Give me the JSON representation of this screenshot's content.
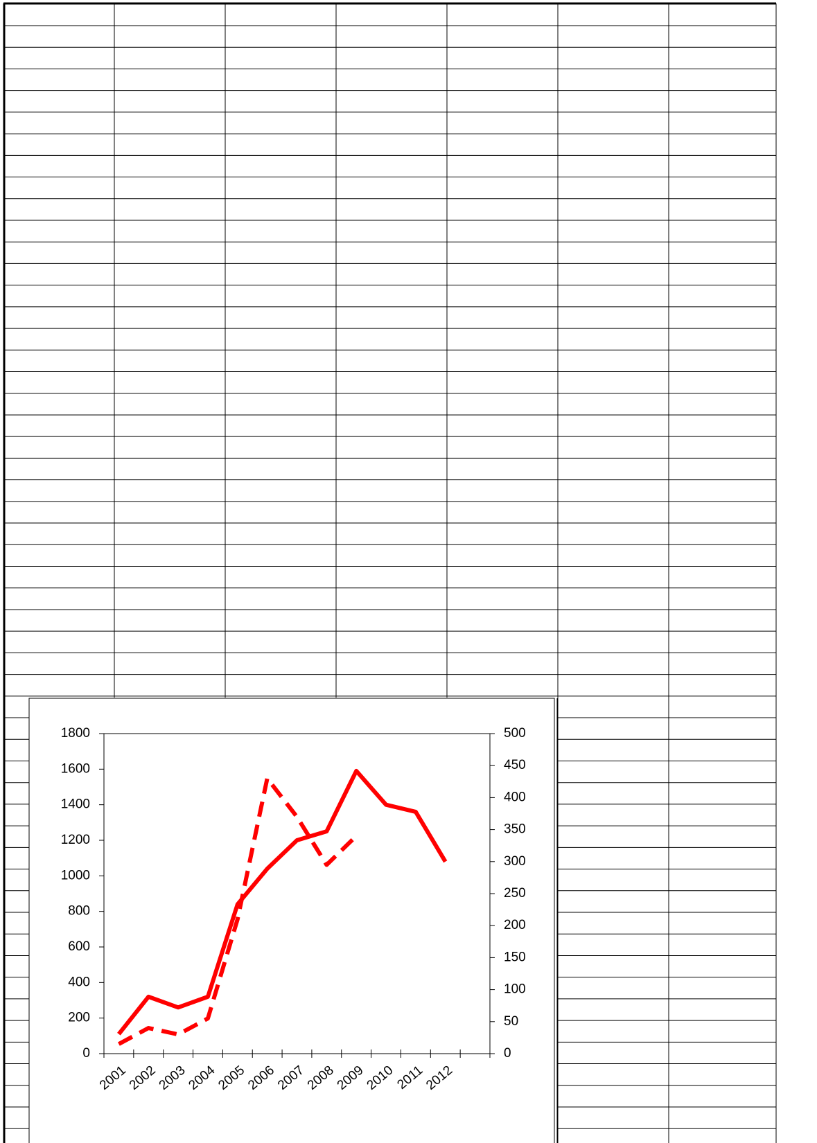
{
  "chart_data": {
    "type": "line",
    "categories": [
      "2001",
      "2002",
      "2003",
      "2004",
      "2005",
      "2006",
      "2007",
      "2008",
      "2009",
      "2010",
      "2011",
      "2012",
      null
    ],
    "series": [
      {
        "color": "#ff0000",
        "style": "solid",
        "values": [
          110,
          320,
          260,
          320,
          840,
          1040,
          1200,
          1250,
          1590,
          1400,
          1360,
          1080,
          null
        ]
      },
      {
        "color": "#ff0000",
        "style": "dashed",
        "axis": "y2",
        "values": [
          15,
          40,
          30,
          55,
          210,
          430,
          370,
          295,
          340,
          null,
          null,
          null,
          null
        ]
      }
    ],
    "ylim": [
      0,
      1800
    ],
    "yticks": [
      0,
      200,
      400,
      600,
      800,
      1000,
      1200,
      1400,
      1600,
      1800
    ],
    "y2lim": [
      0,
      500
    ],
    "y2ticks": [
      0,
      50,
      100,
      150,
      200,
      250,
      300,
      350,
      400,
      450,
      500
    ],
    "grid": false
  }
}
